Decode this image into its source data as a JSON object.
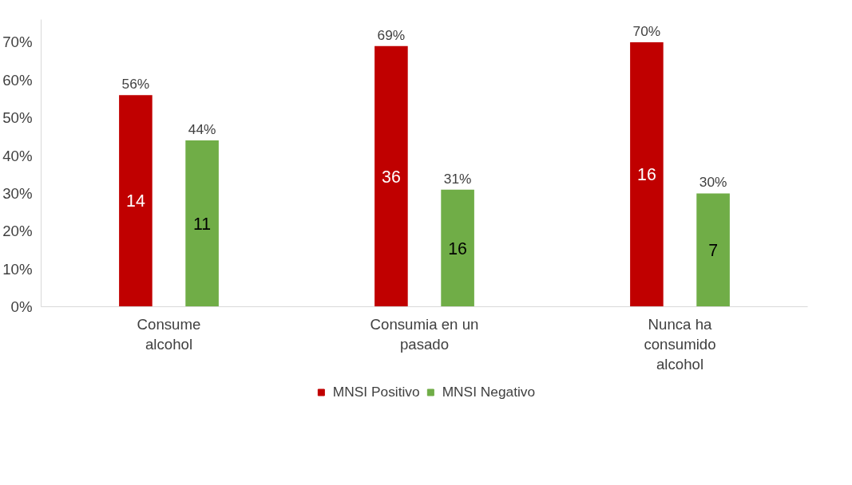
{
  "chart_data": {
    "type": "bar",
    "categories": [
      "Consume alcohol",
      "Consumia en un pasado",
      "Nunca ha consumido alcohol"
    ],
    "series": [
      {
        "name": "MNSI Positivo",
        "color": "#c00000",
        "values": [
          56,
          69,
          70
        ],
        "value_labels": [
          "56%",
          "69%",
          "70%"
        ]
      },
      {
        "name": "MNSI Negativo",
        "color": "#70ad47",
        "values": [
          44,
          31,
          30
        ],
        "value_labels": [
          "44%",
          "31%",
          "30%"
        ]
      }
    ],
    "annotations": [
      "14",
      "11",
      "36",
      "16",
      "16",
      "7"
    ],
    "ylim": [
      0,
      76
    ],
    "yticks": [
      {
        "value": 0,
        "label": "0%"
      },
      {
        "value": 10,
        "label": "10%"
      },
      {
        "value": 20,
        "label": "20%"
      },
      {
        "value": 30,
        "label": "30%"
      },
      {
        "value": 40,
        "label": "40%"
      },
      {
        "value": 50,
        "label": "50%"
      },
      {
        "value": 60,
        "label": "60%"
      },
      {
        "value": 70,
        "label": "70%"
      }
    ],
    "grid": false,
    "legend": "bottom"
  }
}
